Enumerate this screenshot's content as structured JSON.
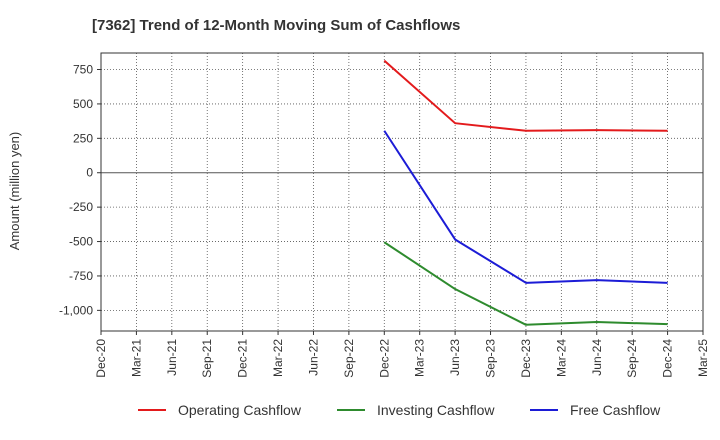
{
  "chart_data": {
    "type": "line",
    "title": "[7362]  Trend of 12-Month Moving Sum of Cashflows",
    "xlabel": "",
    "ylabel": "Amount (million yen)",
    "x_ticks": [
      "Dec-20",
      "Mar-21",
      "Jun-21",
      "Sep-21",
      "Dec-21",
      "Mar-22",
      "Jun-22",
      "Sep-22",
      "Dec-22",
      "Mar-23",
      "Jun-23",
      "Sep-23",
      "Dec-23",
      "Mar-24",
      "Jun-24",
      "Sep-24",
      "Dec-24",
      "Mar-25"
    ],
    "y_ticks": [
      750,
      500,
      250,
      0,
      -250,
      -500,
      -750,
      -1000
    ],
    "y_tick_labels": [
      "750",
      "500",
      "250",
      "0",
      "-250",
      "-500",
      "-750",
      "-1,000"
    ],
    "ylim": [
      -1150,
      870
    ],
    "grid": true,
    "legend_position": "bottom",
    "x": [
      "Dec-22",
      "Jun-23",
      "Dec-23",
      "Jun-24",
      "Dec-24"
    ],
    "series": [
      {
        "name": "Operating Cashflow",
        "color": "#e31a1c",
        "values": [
          815,
          360,
          305,
          310,
          305
        ]
      },
      {
        "name": "Investing Cashflow",
        "color": "#2e8b2e",
        "values": [
          -505,
          -845,
          -1105,
          -1085,
          -1100
        ]
      },
      {
        "name": "Free Cashflow",
        "color": "#1c1cd6",
        "values": [
          305,
          -485,
          -800,
          -780,
          -800
        ]
      }
    ]
  }
}
